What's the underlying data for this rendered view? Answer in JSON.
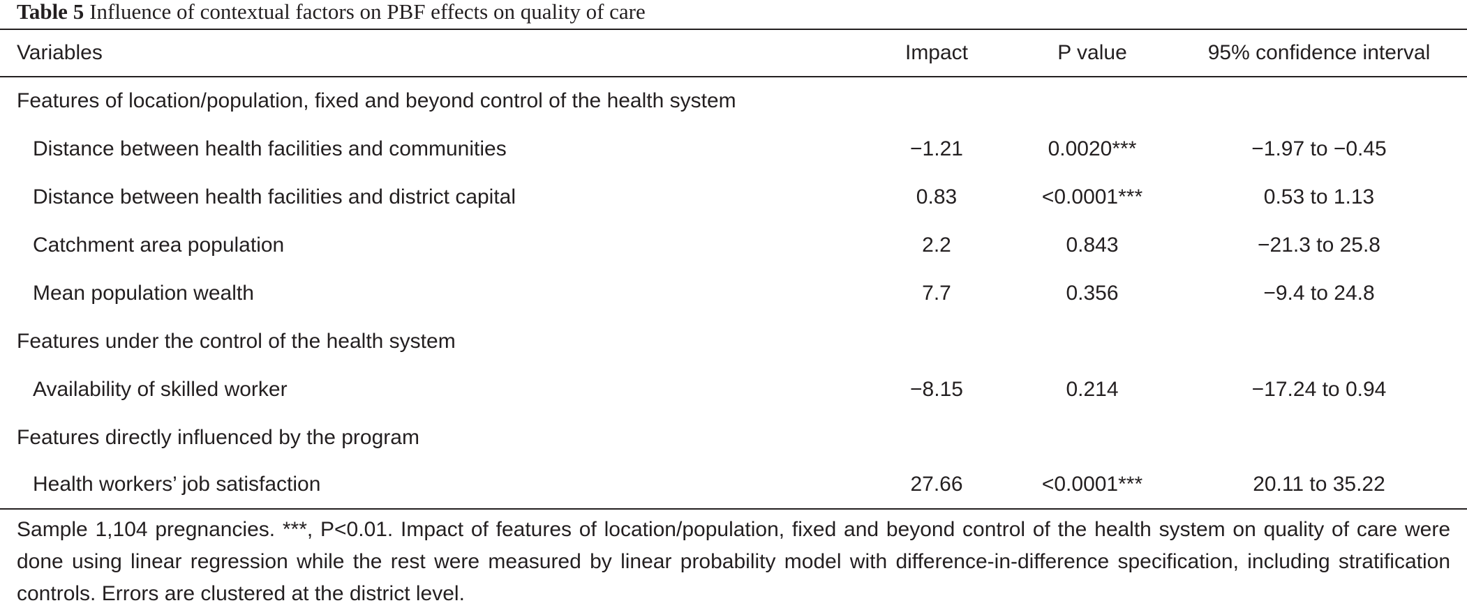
{
  "caption": {
    "label": "Table 5",
    "title": "Influence of contextual factors on PBF effects on quality of care"
  },
  "table": {
    "columns": [
      "Variables",
      "Impact",
      "P value",
      "95% confidence interval"
    ],
    "rows": [
      {
        "type": "section",
        "variable": "Features of location/population, fixed and beyond control of the health system"
      },
      {
        "type": "data",
        "variable": "Distance between health facilities and communities",
        "impact": "−1.21",
        "p_value": "0.0020***",
        "ci": "−1.97 to −0.45"
      },
      {
        "type": "data",
        "variable": "Distance between health facilities and district capital",
        "impact": "0.83",
        "p_value": "<0.0001***",
        "ci": "0.53 to 1.13"
      },
      {
        "type": "data",
        "variable": "Catchment area population",
        "impact": "2.2",
        "p_value": "0.843",
        "ci": "−21.3 to 25.8"
      },
      {
        "type": "data",
        "variable": "Mean population wealth",
        "impact": "7.7",
        "p_value": "0.356",
        "ci": "−9.4 to 24.8"
      },
      {
        "type": "section",
        "variable": "Features under the control of the health system"
      },
      {
        "type": "data",
        "variable": "Availability of skilled worker",
        "impact": "−8.15",
        "p_value": "0.214",
        "ci": "−17.24 to 0.94"
      },
      {
        "type": "section",
        "variable": "Features directly influenced by the program"
      },
      {
        "type": "data",
        "variable": "Health workers’ job satisfaction",
        "impact": "27.66",
        "p_value": "<0.0001***",
        "ci": "20.11 to 35.22"
      }
    ]
  },
  "footnote": "Sample 1,104 pregnancies. ***, P<0.01. Impact of features of location/population, fixed and beyond control of the health system on quality of care were done using linear regression while the rest were measured by linear probability model with difference-in-difference specification, including stratification controls. Errors are clustered at the district level."
}
